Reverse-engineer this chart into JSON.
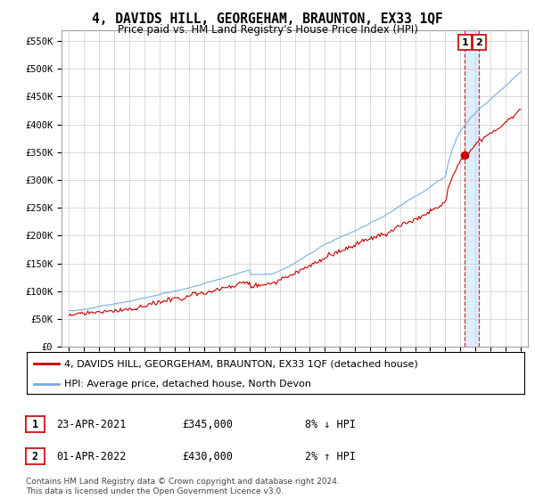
{
  "title": "4, DAVIDS HILL, GEORGEHAM, BRAUNTON, EX33 1QF",
  "subtitle": "Price paid vs. HM Land Registry's House Price Index (HPI)",
  "ylim": [
    0,
    570000
  ],
  "yticks": [
    0,
    50000,
    100000,
    150000,
    200000,
    250000,
    300000,
    350000,
    400000,
    450000,
    500000,
    550000
  ],
  "ytick_labels": [
    "£0",
    "£50K",
    "£100K",
    "£150K",
    "£200K",
    "£250K",
    "£300K",
    "£350K",
    "£400K",
    "£450K",
    "£500K",
    "£550K"
  ],
  "hpi_color": "#7aaddc",
  "price_color": "#cc0000",
  "shade_color": "#ddeeff",
  "legend_label_price": "4, DAVIDS HILL, GEORGEHAM, BRAUNTON, EX33 1QF (detached house)",
  "legend_label_hpi": "HPI: Average price, detached house, North Devon",
  "sale1_label": "1",
  "sale1_date": "23-APR-2021",
  "sale1_price": "£345,000",
  "sale1_hpi": "8% ↓ HPI",
  "sale2_label": "2",
  "sale2_date": "01-APR-2022",
  "sale2_price": "£430,000",
  "sale2_hpi": "2% ↑ HPI",
  "footer": "Contains HM Land Registry data © Crown copyright and database right 2024.\nThis data is licensed under the Open Government Licence v3.0.",
  "bg_color": "#ffffff",
  "grid_color": "#cccccc",
  "sale1_x_year": 2021.31,
  "sale2_x_year": 2022.25,
  "sale1_y": 345000,
  "sale2_y": 430000,
  "xmin": 1995,
  "xmax": 2025
}
